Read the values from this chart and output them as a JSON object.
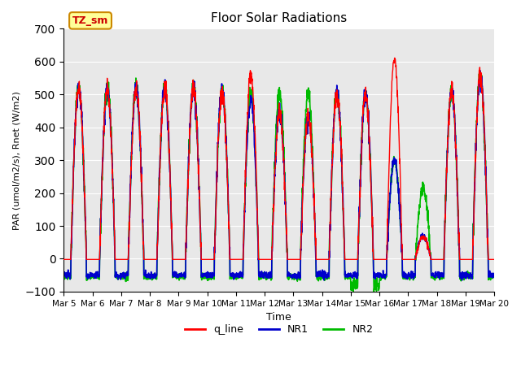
{
  "title": "Floor Solar Radiations",
  "xlabel": "Time",
  "ylabel": "PAR (umol/m2/s), Rnet (W/m2)",
  "ylim": [
    -100,
    700
  ],
  "yticks": [
    -100,
    0,
    100,
    200,
    300,
    400,
    500,
    600,
    700
  ],
  "bg_color": "#e8e8e8",
  "legend_entries": [
    "q_line",
    "NR1",
    "NR2"
  ],
  "legend_colors": [
    "#ff0000",
    "#0000cc",
    "#00bb00"
  ],
  "annotation_text": "TZ_sm",
  "annotation_bg": "#ffff99",
  "annotation_border": "#cc8800",
  "annotation_text_color": "#cc0000",
  "n_days": 15,
  "start_day": 5,
  "night_val_NR1": -50,
  "night_val_NR2": -55
}
